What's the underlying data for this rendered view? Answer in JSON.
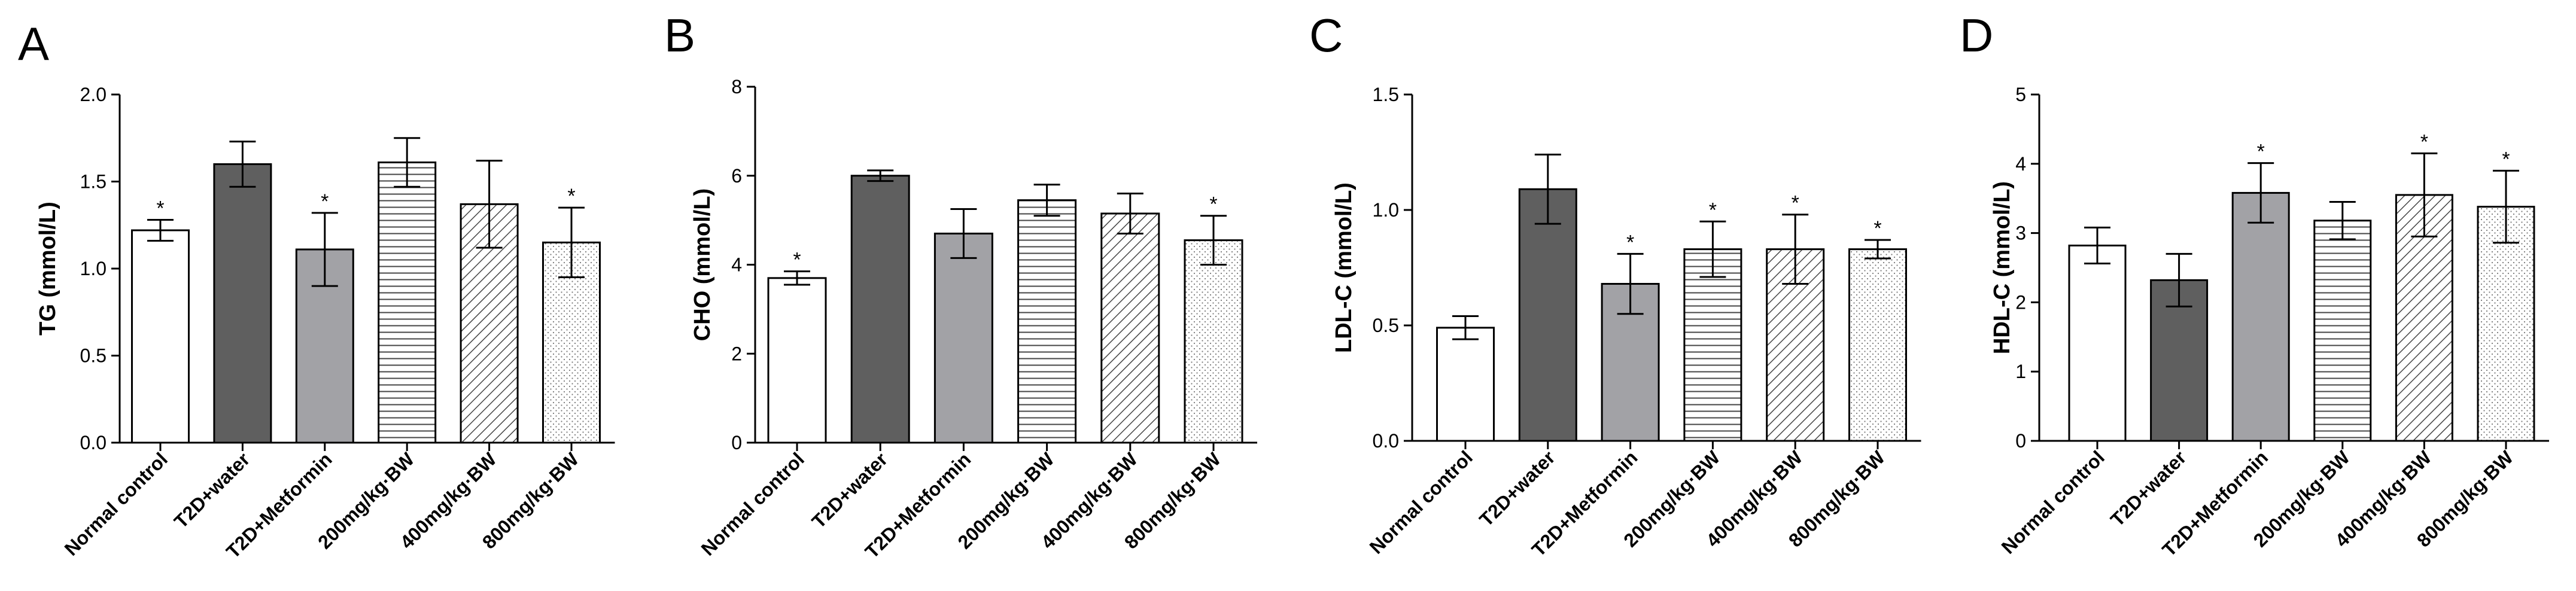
{
  "colors": {
    "axis": "#000000",
    "dark_gray": "#5f5f5f",
    "mid_gray": "#a2a2a6",
    "white": "#ffffff"
  },
  "chart_data": [
    {
      "type": "bar",
      "panel_label": "A",
      "ylabel": "TG (mmol/L)",
      "categories": [
        "Normal control",
        "T2D+water",
        "T2D+Metformin",
        "200mg/kg·BW",
        "400mg/kg·BW",
        "800mg/kg·BW"
      ],
      "fills": [
        "white",
        "dark",
        "gray",
        "hlines",
        "diagonal",
        "dots"
      ],
      "values": [
        1.22,
        1.6,
        1.11,
        1.61,
        1.37,
        1.15
      ],
      "errors": [
        0.06,
        0.13,
        0.21,
        0.14,
        0.25,
        0.2
      ],
      "significance": [
        "*",
        "",
        "*",
        "",
        "",
        "*"
      ],
      "ylim": [
        0,
        2.0
      ],
      "yticks": [
        "0.0",
        "0.5",
        "1.0",
        "1.5",
        "2.0"
      ],
      "grid": false
    },
    {
      "type": "bar",
      "panel_label": "B",
      "ylabel": "CHO (mmol/L)",
      "categories": [
        "Normal control",
        "T2D+water",
        "T2D+Metformin",
        "200mg/kg·BW",
        "400mg/kg·BW",
        "800mg/kg·BW"
      ],
      "fills": [
        "white",
        "dark",
        "gray",
        "hlines",
        "diagonal",
        "dots"
      ],
      "values": [
        3.7,
        6.0,
        4.7,
        5.45,
        5.15,
        4.55
      ],
      "errors": [
        0.15,
        0.12,
        0.55,
        0.35,
        0.45,
        0.55
      ],
      "significance": [
        "*",
        "",
        "",
        "",
        "",
        "*"
      ],
      "ylim": [
        0,
        8
      ],
      "yticks": [
        "0",
        "2",
        "4",
        "6",
        "8"
      ],
      "grid": false
    },
    {
      "type": "bar",
      "panel_label": "C",
      "ylabel": "LDL-C (mmol/L)",
      "categories": [
        "Normal control",
        "T2D+water",
        "T2D+Metformin",
        "200mg/kg·BW",
        "400mg/kg·BW",
        "800mg/kg·BW"
      ],
      "fills": [
        "white",
        "dark",
        "gray",
        "hlines",
        "diagonal",
        "dots"
      ],
      "values": [
        0.49,
        1.09,
        0.68,
        0.83,
        0.83,
        0.83
      ],
      "errors": [
        0.05,
        0.15,
        0.13,
        0.12,
        0.15,
        0.04
      ],
      "significance": [
        "",
        "",
        "*",
        "*",
        "*",
        "*"
      ],
      "ylim": [
        0,
        1.5
      ],
      "yticks": [
        "0.0",
        "0.5",
        "1.0",
        "1.5"
      ],
      "grid": false
    },
    {
      "type": "bar",
      "panel_label": "D",
      "ylabel": "HDL-C (mmol/L)",
      "categories": [
        "Normal control",
        "T2D+water",
        "T2D+Metformin",
        "200mg/kg·BW",
        "400mg/kg·BW",
        "800mg/kg·BW"
      ],
      "fills": [
        "white",
        "dark",
        "gray",
        "hlines",
        "diagonal",
        "dots"
      ],
      "values": [
        2.82,
        2.32,
        3.58,
        3.18,
        3.55,
        3.38
      ],
      "errors": [
        0.26,
        0.38,
        0.43,
        0.27,
        0.6,
        0.52
      ],
      "significance": [
        "",
        "",
        "*",
        "",
        "*",
        "*"
      ],
      "ylim": [
        0,
        5
      ],
      "yticks": [
        "0",
        "1",
        "2",
        "3",
        "4",
        "5"
      ],
      "grid": false
    }
  ]
}
